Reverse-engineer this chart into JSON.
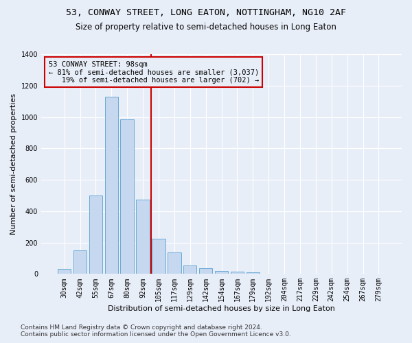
{
  "title": "53, CONWAY STREET, LONG EATON, NOTTINGHAM, NG10 2AF",
  "subtitle": "Size of property relative to semi-detached houses in Long Eaton",
  "xlabel": "Distribution of semi-detached houses by size in Long Eaton",
  "ylabel": "Number of semi-detached properties",
  "footnote1": "Contains HM Land Registry data © Crown copyright and database right 2024.",
  "footnote2": "Contains public sector information licensed under the Open Government Licence v3.0.",
  "bar_labels": [
    "30sqm",
    "42sqm",
    "55sqm",
    "67sqm",
    "80sqm",
    "92sqm",
    "105sqm",
    "117sqm",
    "129sqm",
    "142sqm",
    "154sqm",
    "167sqm",
    "179sqm",
    "192sqm",
    "204sqm",
    "217sqm",
    "229sqm",
    "242sqm",
    "254sqm",
    "267sqm",
    "279sqm"
  ],
  "bar_values": [
    30,
    152,
    500,
    1130,
    985,
    475,
    225,
    135,
    55,
    35,
    20,
    15,
    10,
    0,
    0,
    0,
    0,
    0,
    0,
    0,
    0
  ],
  "bar_color": "#c5d8f0",
  "bar_edge_color": "#6aaad4",
  "vline_x_index": 5.5,
  "vline_color": "#cc0000",
  "annotation_box_color": "#cc0000",
  "background_color": "#e8eef8",
  "grid_color": "#ffffff",
  "ylim": [
    0,
    1400
  ],
  "pct_smaller": 81,
  "count_smaller": 3037,
  "pct_larger": 19,
  "count_larger": 702,
  "title_fontsize": 9.5,
  "subtitle_fontsize": 8.5,
  "axis_label_fontsize": 8,
  "tick_fontsize": 7,
  "annotation_fontsize": 7.5,
  "xlabel_fontsize": 8,
  "footnote_fontsize": 6.5
}
